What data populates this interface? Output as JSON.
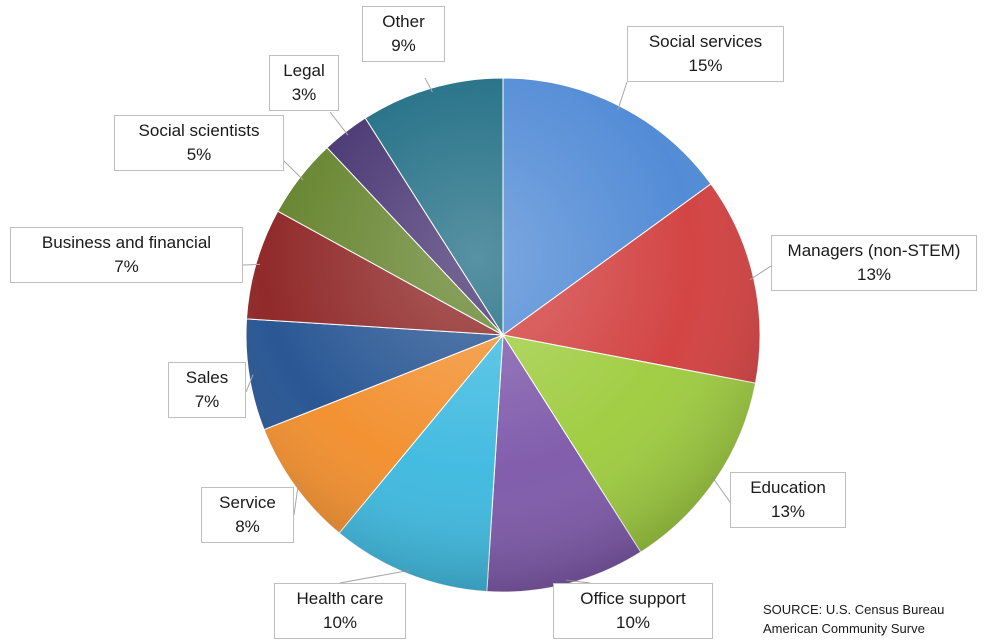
{
  "chart_data": {
    "type": "pie",
    "title": "",
    "slices": [
      {
        "label": "Social services",
        "value": 15,
        "pct_label": "15%",
        "color": "#4a86d4"
      },
      {
        "label": "Managers (non-STEM)",
        "value": 13,
        "pct_label": "13%",
        "color": "#d13b3b"
      },
      {
        "label": "Education",
        "value": 13,
        "pct_label": "13%",
        "color": "#9ccb3a"
      },
      {
        "label": "Office support",
        "value": 10,
        "pct_label": "10%",
        "color": "#7b55a8"
      },
      {
        "label": "Health care",
        "value": 10,
        "pct_label": "10%",
        "color": "#39b8df"
      },
      {
        "label": "Service",
        "value": 8,
        "pct_label": "8%",
        "color": "#f28c28"
      },
      {
        "label": "Sales",
        "value": 7,
        "pct_label": "7%",
        "color": "#1f4f8f"
      },
      {
        "label": "Business and financial",
        "value": 7,
        "pct_label": "7%",
        "color": "#8b1f1f"
      },
      {
        "label": "Social scientists",
        "value": 5,
        "pct_label": "5%",
        "color": "#5f7f25"
      },
      {
        "label": "Legal",
        "value": 3,
        "pct_label": "3%",
        "color": "#3f2b6b"
      },
      {
        "label": "Other",
        "value": 9,
        "pct_label": "9%",
        "color": "#16677f"
      }
    ],
    "legend": "none",
    "start_angle": "12 o'clock, clockwise"
  },
  "source": {
    "line1": "SOURCE: U.S. Census Bureau",
    "line2": "American Community Surve"
  }
}
